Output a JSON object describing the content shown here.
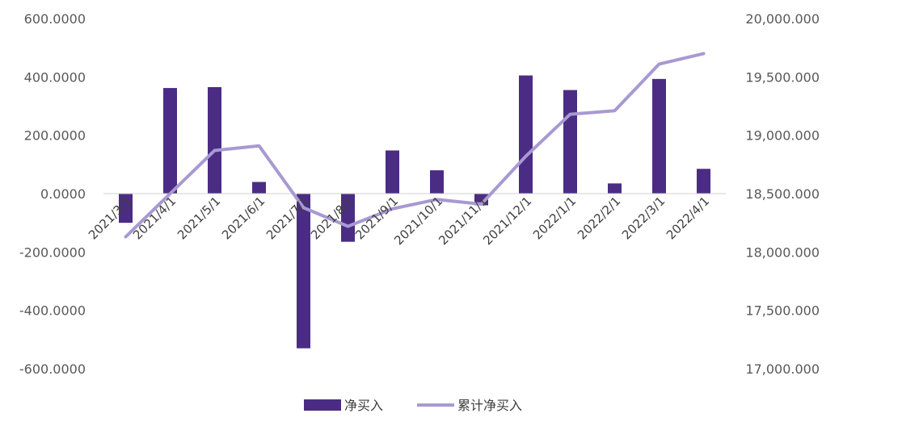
{
  "chart_data": {
    "type": "bar+line",
    "categories": [
      "2021/3/1",
      "2021/4/1",
      "2021/5/1",
      "2021/6/1",
      "2021/7/1",
      "2021/8/1",
      "2021/9/1",
      "2021/10/1",
      "2021/11/1",
      "2021/12/1",
      "2022/1/1",
      "2022/2/1",
      "2022/3/1",
      "2022/4/1"
    ],
    "series": [
      {
        "name": "净买入",
        "type": "bar",
        "axis": "left",
        "color": "#4b2c84",
        "values": [
          -100,
          362,
          365,
          40,
          -530,
          -165,
          148,
          80,
          -40,
          405,
          355,
          35,
          393,
          85
        ]
      },
      {
        "name": "累计净买入",
        "type": "line",
        "axis": "right",
        "color": "#a899d2",
        "values": [
          18130,
          18500,
          18870,
          18910,
          18380,
          18220,
          18370,
          18450,
          18410,
          18820,
          19180,
          19210,
          19610,
          19700
        ]
      }
    ],
    "left_axis": {
      "min": -600,
      "max": 600,
      "ticks": [
        600,
        400,
        200,
        0,
        -200,
        -400,
        -600
      ],
      "labels": [
        "600.0000",
        "400.0000",
        "200.0000",
        "0.0000",
        "-200.0000",
        "-400.0000",
        "-600.0000"
      ]
    },
    "right_axis": {
      "min": 17000,
      "max": 20000,
      "ticks": [
        20000,
        19500,
        19000,
        18500,
        18000,
        17500,
        17000
      ],
      "labels": [
        "20,000.000",
        "19,500.000",
        "19,000.000",
        "18,500.000",
        "18,000.000",
        "17,500.000",
        "17,000.000"
      ]
    },
    "legend": {
      "placement": "bottom",
      "items": [
        "净买入",
        "累计净买入"
      ]
    },
    "grid": false
  }
}
